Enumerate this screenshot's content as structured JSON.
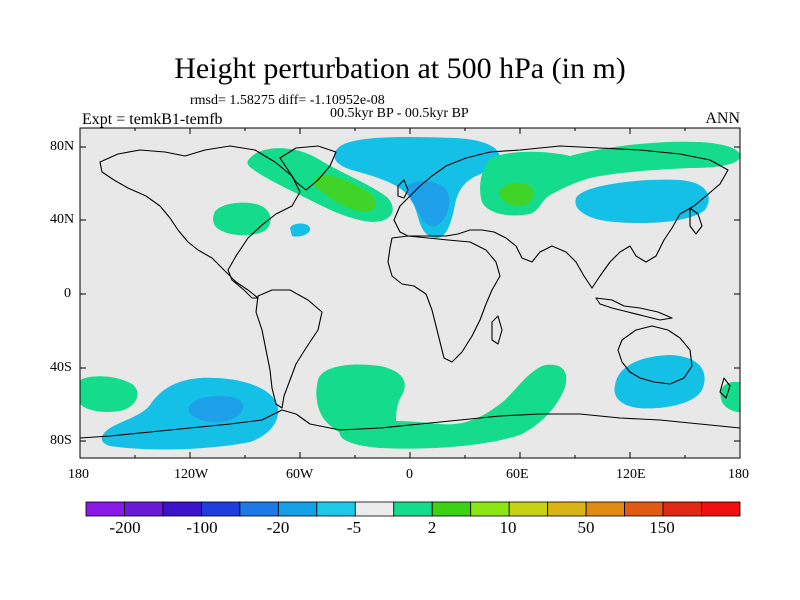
{
  "title": "Height perturbation at 500 hPa (in m)",
  "stats_line": "rmsd= 1.58275 diff= -1.10952e-08",
  "period": "00.5kyr BP - 00.5kyr BP",
  "experiment": "Expt = temkB1-temfb",
  "season": "ANN",
  "axes": {
    "lat_ticks": [
      "80N",
      "40N",
      "0",
      "40S",
      "80S"
    ],
    "lon_ticks": [
      "180",
      "120W",
      "60W",
      "0",
      "60E",
      "120E",
      "180"
    ]
  },
  "colorbar": {
    "labels": [
      "-200",
      "-100",
      "-20",
      "-5",
      "2",
      "10",
      "50",
      "150"
    ],
    "colors": [
      "#8a1ae6",
      "#6a1ad6",
      "#3b14cc",
      "#1e3ee0",
      "#1e78e6",
      "#14a0e6",
      "#1ec8e6",
      "#ececec",
      "#14dc8c",
      "#3cd214",
      "#8ce614",
      "#c8d214",
      "#d8b414",
      "#e08c14",
      "#e05a14",
      "#e02814",
      "#f01010"
    ]
  },
  "colors": {
    "ocean_land_bg": "#e8e8e8",
    "negative_light": "#14c0e6",
    "negative_mid": "#1ea0e8",
    "positive_light": "#14dc8c",
    "positive_mid": "#40d428"
  }
}
